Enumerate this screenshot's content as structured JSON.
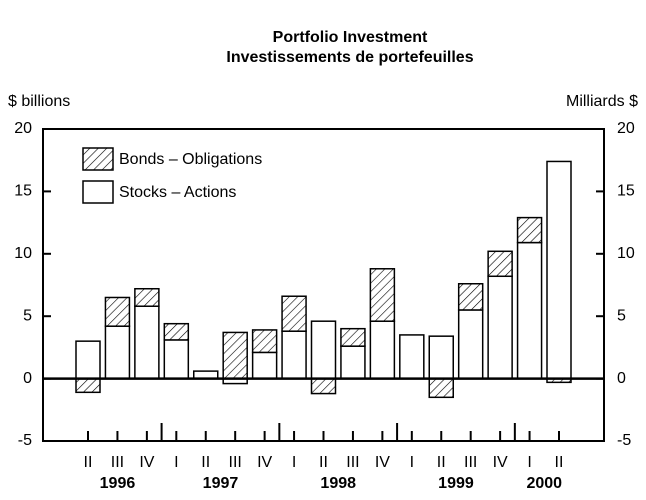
{
  "chart_data": {
    "type": "bar",
    "stacked": true,
    "title": "Portfolio Investment",
    "subtitle": "Investissements de portefeuilles",
    "y_label": "$ billions",
    "y2_label": "Milliards $",
    "categories": [
      "II",
      "III",
      "IV",
      "I",
      "II",
      "III",
      "IV",
      "I",
      "II",
      "III",
      "IV",
      "I",
      "II",
      "III",
      "IV",
      "I",
      "II"
    ],
    "year_groups": [
      {
        "label": "1996",
        "range": [
          0,
          2
        ]
      },
      {
        "label": "1997",
        "range": [
          3,
          6
        ]
      },
      {
        "label": "1998",
        "range": [
          7,
          10
        ]
      },
      {
        "label": "1999",
        "range": [
          11,
          14
        ]
      },
      {
        "label": "2000",
        "range": [
          15,
          16
        ]
      }
    ],
    "series": [
      {
        "name": "Stocks – Actions",
        "color": "#ffffff",
        "pattern": "none",
        "values": [
          3.0,
          4.2,
          5.8,
          3.1,
          0.6,
          -0.4,
          2.1,
          3.8,
          4.6,
          2.6,
          4.6,
          3.5,
          3.4,
          5.5,
          8.2,
          10.9,
          17.4
        ]
      },
      {
        "name": "Bonds – Obligations",
        "color": "#ffffff",
        "pattern": "hatch",
        "values": [
          -1.1,
          2.3,
          1.4,
          1.3,
          0,
          3.7,
          1.8,
          2.8,
          -1.2,
          1.4,
          4.2,
          0,
          -1.5,
          2.1,
          2.0,
          2.0,
          -0.3
        ]
      }
    ],
    "ylim": [
      -5,
      20
    ],
    "yticks": [
      -5,
      0,
      5,
      10,
      15,
      20
    ],
    "legend": "upper left"
  }
}
